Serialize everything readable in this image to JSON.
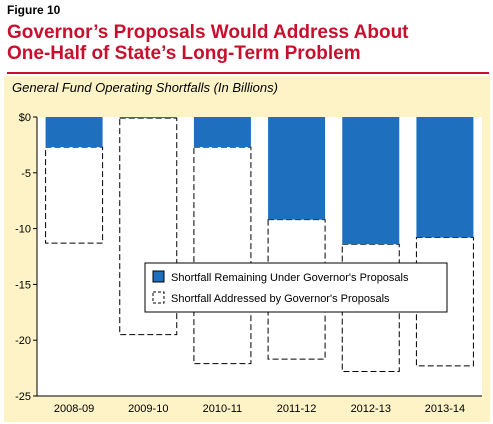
{
  "figure_label": "Figure 10",
  "title_lines": [
    "Governor’s Proposals Would Address About",
    "One-Half of State’s Long-Term Problem"
  ],
  "subtitle": "General Fund Operating Shortfalls (In Billions)",
  "colors": {
    "title": "#c8102e",
    "panel": "#fdf3c7",
    "remaining": "#1f6fbf",
    "addressed": "#ffffff"
  },
  "chart_data": {
    "type": "bar",
    "stacked": true,
    "categories": [
      "2008-09",
      "2009-10",
      "2010-11",
      "2011-12",
      "2012-13",
      "2013-14"
    ],
    "series": [
      {
        "name": "Shortfall Remaining Under Governor's Proposals",
        "values": [
          -2.7,
          -0.1,
          -2.7,
          -9.2,
          -11.4,
          -10.8
        ]
      },
      {
        "name": "Shortfall Addressed by Governor's Proposals",
        "values": [
          -8.6,
          -19.4,
          -19.4,
          -12.5,
          -11.4,
          -11.5
        ]
      }
    ],
    "ylim": [
      -25,
      0
    ],
    "yticks": [
      0,
      -5,
      -10,
      -15,
      -20,
      -25
    ],
    "ytick_labels": [
      "$0",
      "-5",
      "-10",
      "-15",
      "-20",
      "-25"
    ],
    "gridlines": false,
    "legend_position": "center-right"
  }
}
